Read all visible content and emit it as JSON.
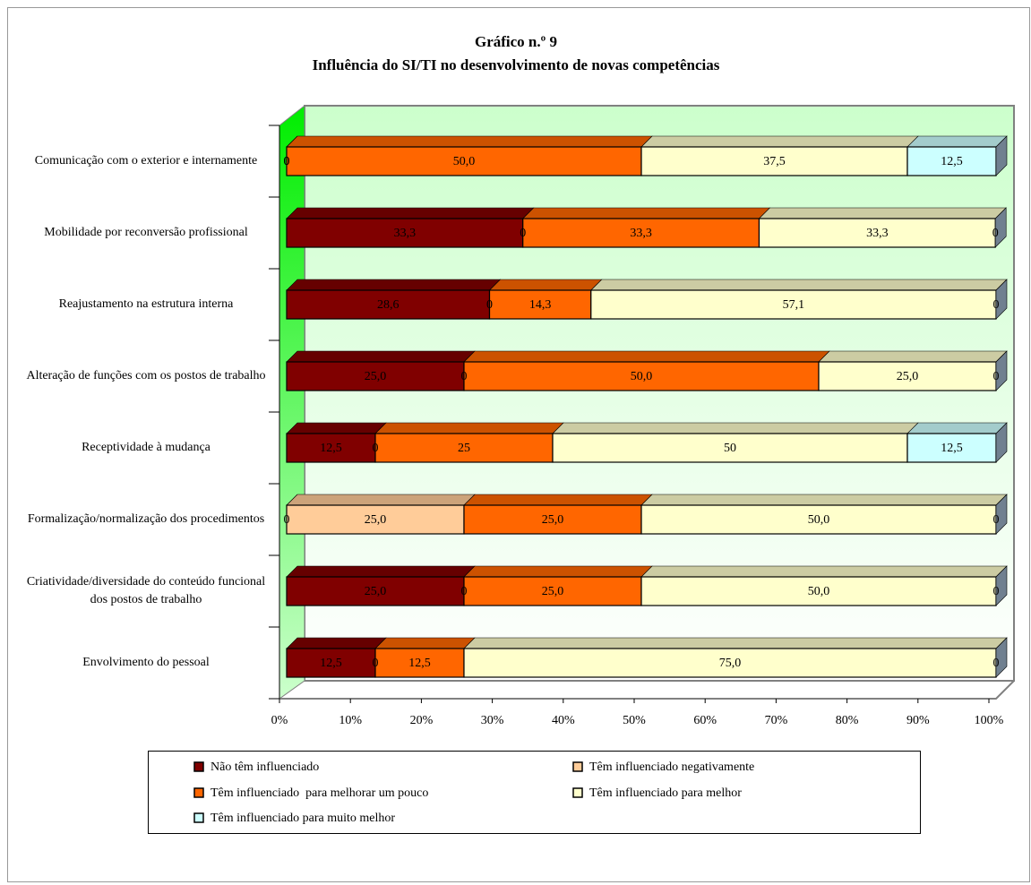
{
  "chart_data": {
    "type": "stacked-bar-horizontal",
    "title": "Gráfico n.º 9",
    "subtitle": "Influência do SI/TI no desenvolvimento de novas competências",
    "categories": [
      "Comunicação com o exterior e internamente",
      "Mobilidade por reconversão profissional",
      "Reajustamento na estrutura interna",
      "Alteração de funções com os postos de trabalho",
      "Receptividade à mudança",
      "Formalização/normalização dos procedimentos",
      "Criatividade/diversidade do conteúdo funcional dos postos de trabalho",
      "Envolvimento do pessoal"
    ],
    "series": [
      {
        "name": "Não têm influenciado",
        "color": "#800000",
        "values": [
          0,
          33.3,
          28.6,
          25.0,
          12.5,
          0,
          25.0,
          12.5
        ],
        "value_labels": [
          "0",
          "33,3",
          "28,6",
          "25,0",
          "12,5",
          "0",
          "25,0",
          "12,5"
        ]
      },
      {
        "name": "Têm influenciado negativamente",
        "color": "#ffcc99",
        "values": [
          0,
          0,
          0,
          0,
          0,
          25.0,
          0,
          0
        ],
        "value_labels": [
          "0",
          "0",
          "0",
          "0",
          "0",
          "25,0",
          "0",
          "0"
        ]
      },
      {
        "name": "Têm influenciado  para melhorar um pouco",
        "color": "#ff6600",
        "values": [
          50.0,
          33.3,
          14.3,
          50.0,
          25,
          25.0,
          25.0,
          12.5
        ],
        "value_labels": [
          "50,0",
          "33,3",
          "14,3",
          "50,0",
          "25",
          "25,0",
          "25,0",
          "12,5"
        ]
      },
      {
        "name": "Têm influenciado para melhor",
        "color": "#ffffcc",
        "values": [
          37.5,
          33.3,
          57.1,
          25.0,
          50,
          50.0,
          50.0,
          75.0
        ],
        "value_labels": [
          "37,5",
          "33,3",
          "57,1",
          "25,0",
          "50",
          "50,0",
          "50,0",
          "75,0"
        ]
      },
      {
        "name": "Têm influenciado para muito melhor",
        "color": "#ccffff",
        "values": [
          12.5,
          0,
          0,
          0,
          12.5,
          0,
          0,
          0
        ],
        "value_labels": [
          "12,5",
          "0",
          "0",
          "0",
          "12,5",
          "0",
          "0",
          "0"
        ]
      }
    ],
    "xlim": [
      0,
      100
    ],
    "xticks": [
      {
        "value": 0,
        "label": "0%"
      },
      {
        "value": 10,
        "label": "10%"
      },
      {
        "value": 20,
        "label": "20%"
      },
      {
        "value": 30,
        "label": "30%"
      },
      {
        "value": 40,
        "label": "40%"
      },
      {
        "value": 50,
        "label": "50%"
      },
      {
        "value": 60,
        "label": "60%"
      },
      {
        "value": 70,
        "label": "70%"
      },
      {
        "value": 80,
        "label": "80%"
      },
      {
        "value": 90,
        "label": "90%"
      },
      {
        "value": 100,
        "label": "100%"
      }
    ]
  }
}
